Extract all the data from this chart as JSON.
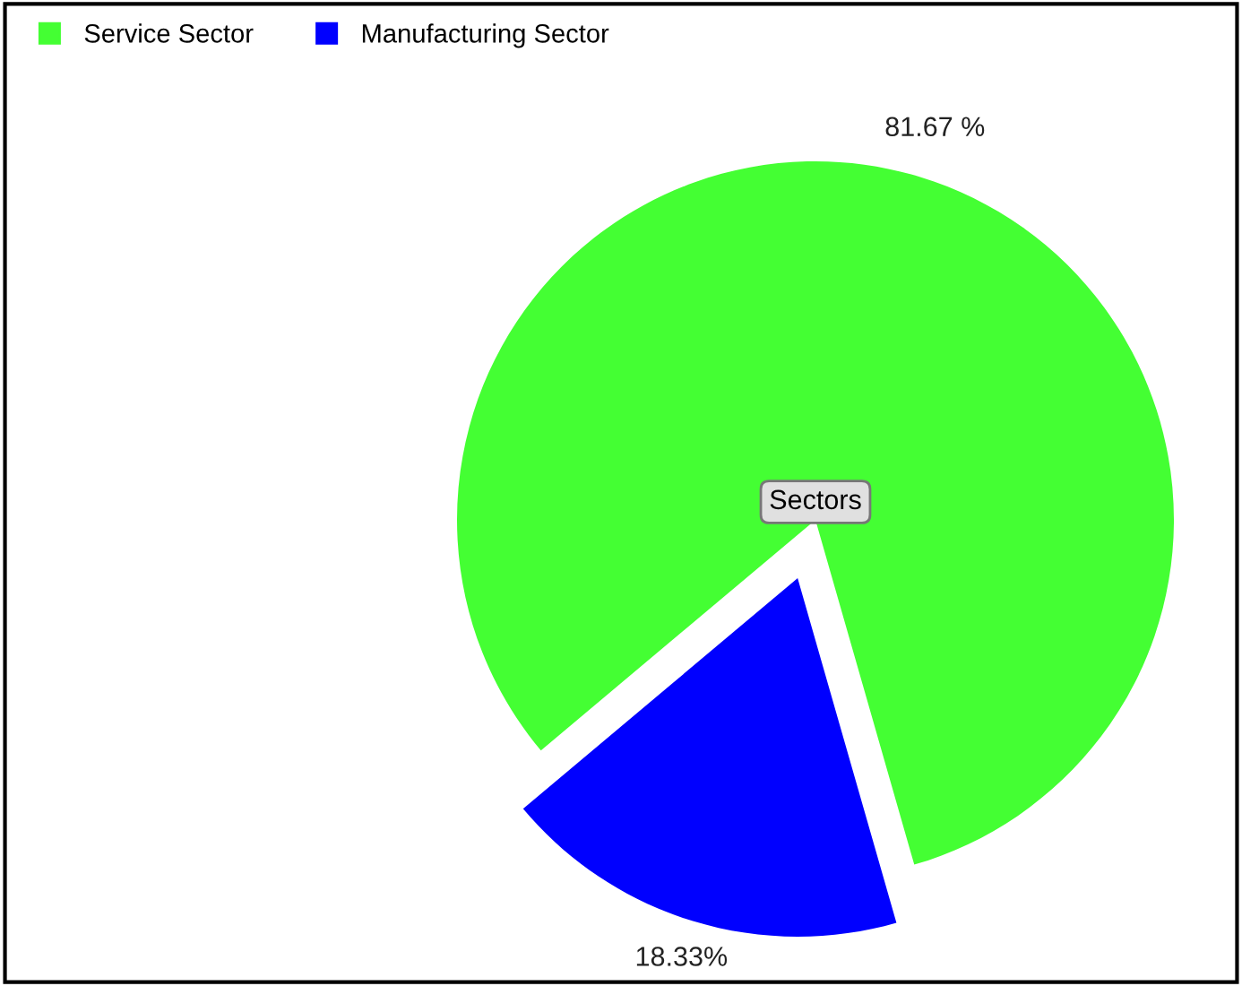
{
  "chart_data": {
    "type": "pie",
    "categories": [
      "Service Sector",
      "Manufacturing Sector"
    ],
    "values": [
      81.67,
      18.33
    ],
    "colors": [
      "#44ff33",
      "#0000ff"
    ],
    "value_labels": [
      "81.67 %",
      "18.33%"
    ],
    "annotations": [
      "Sectors"
    ],
    "legend": "top left"
  }
}
